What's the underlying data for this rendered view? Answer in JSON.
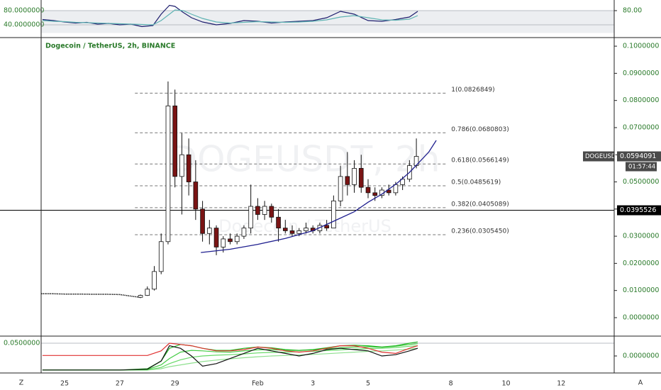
{
  "chart_data": [
    {
      "type": "candlestick",
      "title": "Dogecoin / TetherUS, 2h, BINANCE",
      "watermark": "DOGEUSDT, 2h",
      "watermark_subtitle": "Dogecoin / TetherUS",
      "xlim": [
        24.15,
        44.92
      ],
      "xticks": [
        25,
        27,
        29,
        {
          "value": 32,
          "label": "Feb"
        },
        {
          "value": 34,
          "label": "3"
        },
        {
          "value": 36,
          "label": "5"
        },
        {
          "value": 39,
          "label": "8"
        },
        {
          "value": 41,
          "label": "10"
        },
        {
          "value": 43,
          "label": "12"
        }
      ],
      "ylim": [
        -0.0068,
        0.1029
      ],
      "yticks": [
        {
          "value": 0.1,
          "label": "0.1000000"
        },
        {
          "value": 0.09,
          "label": "0.0900000"
        },
        {
          "value": 0.08,
          "label": "0.0800000"
        },
        {
          "value": 0.07,
          "label": "0.0700000"
        },
        {
          "value": 0.06,
          "label": "0.0600000"
        },
        {
          "value": 0.05,
          "label": "0.0500000"
        },
        {
          "value": 0.04,
          "label": "0.0400000"
        },
        {
          "value": 0.03,
          "label": "0.0300000"
        },
        {
          "value": 0.02,
          "label": "0.0200000"
        },
        {
          "value": 0.01,
          "label": "0.0100000"
        },
        {
          "value": 0,
          "label": "0.0000000"
        }
      ],
      "x": [
        27.75,
        28.0,
        28.25,
        28.5,
        28.75,
        29.0,
        29.25,
        29.5,
        29.75,
        30.0,
        30.25,
        30.5,
        30.75,
        31.0,
        31.25,
        31.5,
        31.75,
        32.0,
        32.25,
        32.5,
        32.75,
        33.0,
        33.25,
        33.5,
        33.75,
        34.0,
        34.25,
        34.5,
        34.75,
        35.0,
        35.25,
        35.5,
        35.75,
        36.0,
        36.25,
        36.5,
        36.75,
        37.0,
        37.25,
        37.5,
        37.75
      ],
      "open": [
        0.0075,
        0.0082,
        0.0105,
        0.017,
        0.028,
        0.078,
        0.052,
        0.06,
        0.05,
        0.04,
        0.031,
        0.033,
        0.026,
        0.029,
        0.028,
        0.03,
        0.033,
        0.041,
        0.038,
        0.041,
        0.037,
        0.033,
        0.032,
        0.031,
        0.032,
        0.033,
        0.032,
        0.034,
        0.033,
        0.043,
        0.052,
        0.049,
        0.055,
        0.048,
        0.046,
        0.045,
        0.047,
        0.046,
        0.049,
        0.051,
        0.056
      ],
      "high": [
        0.0085,
        0.0115,
        0.019,
        0.031,
        0.087,
        0.084,
        0.068,
        0.066,
        0.058,
        0.043,
        0.036,
        0.034,
        0.03,
        0.031,
        0.031,
        0.034,
        0.049,
        0.044,
        0.043,
        0.042,
        0.04,
        0.036,
        0.034,
        0.033,
        0.035,
        0.034,
        0.035,
        0.036,
        0.045,
        0.056,
        0.061,
        0.058,
        0.06,
        0.051,
        0.048,
        0.048,
        0.049,
        0.05,
        0.052,
        0.058,
        0.066
      ],
      "low": [
        0.0072,
        0.008,
        0.01,
        0.016,
        0.027,
        0.048,
        0.038,
        0.045,
        0.036,
        0.028,
        0.027,
        0.023,
        0.024,
        0.027,
        0.027,
        0.029,
        0.031,
        0.036,
        0.036,
        0.035,
        0.028,
        0.031,
        0.03,
        0.03,
        0.031,
        0.031,
        0.031,
        0.032,
        0.033,
        0.041,
        0.045,
        0.046,
        0.046,
        0.044,
        0.043,
        0.044,
        0.045,
        0.045,
        0.047,
        0.05,
        0.055
      ],
      "close": [
        0.0082,
        0.0105,
        0.017,
        0.028,
        0.078,
        0.052,
        0.06,
        0.05,
        0.04,
        0.031,
        0.033,
        0.026,
        0.029,
        0.028,
        0.03,
        0.033,
        0.041,
        0.038,
        0.041,
        0.037,
        0.033,
        0.032,
        0.031,
        0.032,
        0.033,
        0.032,
        0.034,
        0.033,
        0.043,
        0.052,
        0.049,
        0.055,
        0.048,
        0.046,
        0.045,
        0.047,
        0.046,
        0.049,
        0.051,
        0.056,
        0.0594
      ],
      "up_color": "#ffffff",
      "down_color": "#7a1414",
      "border_color": "#111111",
      "pre_line": {
        "x": [
          24.15,
          24.6,
          25,
          25.5,
          26,
          26.5,
          27,
          27.5,
          27.75
        ],
        "values": [
          0.0088,
          0.0088,
          0.0087,
          0.0087,
          0.0086,
          0.0086,
          0.0085,
          0.0078,
          0.0075
        ],
        "color": "#111111"
      },
      "curve": {
        "x": [
          29.94,
          31,
          32,
          33,
          34,
          34.75,
          35.5,
          36,
          36.5,
          37.06,
          37.5,
          37.83,
          38.2,
          38.47
        ],
        "values": [
          0.024,
          0.0252,
          0.027,
          0.0292,
          0.032,
          0.0355,
          0.039,
          0.0425,
          0.0455,
          0.0496,
          0.0535,
          0.057,
          0.061,
          0.0653
        ],
        "color": "#1f1f8f"
      },
      "fib_xlim": [
        27.55,
        38.86
      ],
      "fib_levels": [
        {
          "price": 0.0826849,
          "label": "1(0.0826849)"
        },
        {
          "price": 0.0680803,
          "label": "0.786(0.0680803)"
        },
        {
          "price": 0.0566149,
          "label": "0.618(0.0566149)"
        },
        {
          "price": 0.0485619,
          "label": "0.5(0.0485619)"
        },
        {
          "price": 0.0405089,
          "label": "0.382(0.0405089)"
        },
        {
          "price": 0.030545,
          "label": "0.236(0.0305450)"
        }
      ],
      "horizontal_line": 0.0395526,
      "last_price": 0.0594091,
      "symbol": "DOGEUSDT",
      "countdown": "01:57:44"
    },
    {
      "type": "line",
      "ylim": [
        14,
        110
      ],
      "yticks": [
        {
          "value": 80,
          "label": "80.0000000"
        },
        {
          "value": 40,
          "label": "40.0000000"
        }
      ],
      "y2ticks": [
        {
          "value": 80,
          "label": "80.00"
        }
      ],
      "band": [
        17,
        80
      ],
      "x": [
        24.2,
        24.6,
        25.0,
        25.4,
        25.8,
        26.2,
        26.6,
        27.0,
        27.4,
        27.8,
        28.2,
        28.5,
        28.8,
        29.0,
        29.3,
        29.6,
        30.0,
        30.5,
        31.0,
        31.5,
        32,
        32.5,
        33,
        33.5,
        34,
        34.5,
        35,
        35.5,
        36,
        36.5,
        37,
        37.5,
        37.8
      ],
      "series": [
        {
          "color": "#1e1e6e",
          "values": [
            55,
            52,
            48,
            45,
            47,
            42,
            44,
            40,
            42,
            35,
            38,
            70,
            95,
            92,
            75,
            60,
            48,
            40,
            44,
            52,
            50,
            45,
            48,
            50,
            52,
            60,
            78,
            70,
            52,
            50,
            55,
            62,
            78
          ]
        },
        {
          "color": "#5fb3b3",
          "values": [
            52,
            50,
            49,
            47,
            46,
            45,
            44,
            43,
            42,
            41,
            40,
            52,
            70,
            82,
            80,
            70,
            58,
            48,
            45,
            47,
            49,
            48,
            47,
            48,
            50,
            54,
            62,
            66,
            60,
            54,
            53,
            56,
            66
          ]
        }
      ]
    },
    {
      "type": "line",
      "ylim": [
        -0.0611,
        0.0778
      ],
      "yticks": [
        {
          "value": 0.05,
          "label": "0.0500000"
        }
      ],
      "y2ticks": [
        {
          "value": 0,
          "label": "0.0000000"
        }
      ],
      "x": [
        24.2,
        25,
        26,
        27,
        28,
        28.5,
        28.8,
        29.2,
        29.6,
        30,
        30.5,
        31,
        31.5,
        32,
        32.5,
        33,
        33.5,
        34,
        34.5,
        35,
        35.5,
        36,
        36.5,
        37,
        37.5,
        37.8
      ],
      "series": [
        {
          "color": "#8fe08f",
          "values": [
            -0.055,
            -0.055,
            -0.055,
            -0.055,
            -0.055,
            -0.05,
            -0.042,
            -0.035,
            -0.028,
            -0.022,
            -0.016,
            -0.011,
            -0.007,
            -0.003,
            0.0,
            0.002,
            0.004,
            0.006,
            0.009,
            0.012,
            0.015,
            0.018,
            0.02,
            0.023,
            0.027,
            0.03
          ]
        },
        {
          "color": "#66d966",
          "values": [
            -0.055,
            -0.055,
            -0.055,
            -0.055,
            -0.055,
            -0.045,
            -0.03,
            -0.015,
            -0.005,
            0.0,
            0.003,
            0.005,
            0.008,
            0.012,
            0.014,
            0.015,
            0.016,
            0.018,
            0.021,
            0.024,
            0.027,
            0.029,
            0.03,
            0.033,
            0.038,
            0.04
          ]
        },
        {
          "color": "#44cc44",
          "values": [
            -0.055,
            -0.055,
            -0.055,
            -0.055,
            -0.053,
            -0.035,
            -0.01,
            0.015,
            0.022,
            0.02,
            0.016,
            0.015,
            0.02,
            0.024,
            0.025,
            0.022,
            0.022,
            0.024,
            0.028,
            0.032,
            0.035,
            0.036,
            0.034,
            0.038,
            0.045,
            0.048
          ]
        },
        {
          "color": "#22b822",
          "values": [
            -0.055,
            -0.055,
            -0.055,
            -0.055,
            -0.05,
            -0.02,
            0.03,
            0.045,
            0.04,
            0.03,
            0.022,
            0.022,
            0.03,
            0.035,
            0.032,
            0.025,
            0.022,
            0.025,
            0.032,
            0.04,
            0.042,
            0.04,
            0.035,
            0.04,
            0.05,
            0.055
          ]
        },
        {
          "color": "#e03030",
          "values": [
            0.002,
            0.002,
            0.002,
            0.002,
            0.002,
            0.02,
            0.05,
            0.045,
            0.04,
            0.03,
            0.02,
            0.02,
            0.025,
            0.035,
            0.03,
            0.02,
            0.015,
            0.02,
            0.03,
            0.04,
            0.04,
            0.03,
            0.015,
            0.01,
            0.03,
            0.04
          ]
        },
        {
          "color": "#111111",
          "values": [
            -0.055,
            -0.055,
            -0.055,
            -0.055,
            -0.052,
            -0.02,
            0.04,
            0.03,
            0.0,
            -0.04,
            -0.03,
            -0.01,
            0.01,
            0.03,
            0.02,
            0.01,
            0.0,
            0.01,
            0.025,
            0.03,
            0.025,
            0.02,
            0.0,
            0.005,
            0.02,
            0.03
          ]
        }
      ]
    }
  ],
  "ui": {
    "corner_left": "Z",
    "corner_right": "A"
  }
}
